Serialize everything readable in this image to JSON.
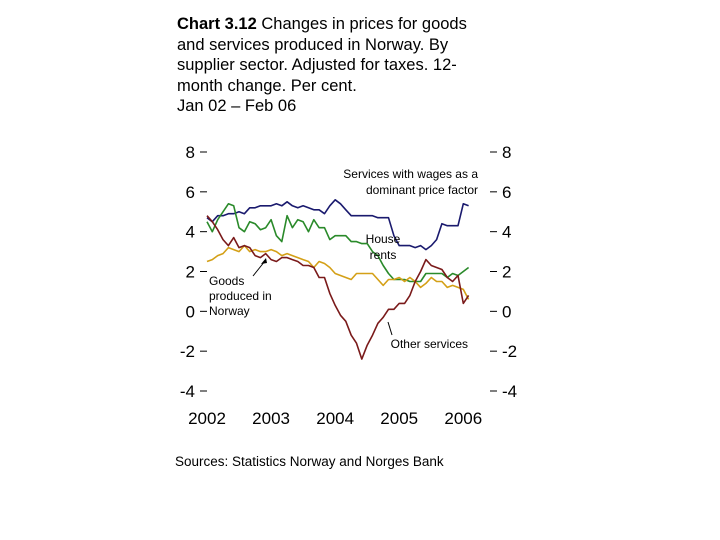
{
  "title": {
    "label": "Chart 3.12",
    "lines": [
      "Changes in prices for goods",
      "and services produced in Norway. By",
      "supplier sector. Adjusted for taxes. 12-",
      "month change. Per cent.",
      "Jan 02 – Feb 06"
    ]
  },
  "source": "Sources: Statistics Norway and Norges Bank",
  "colors": {
    "services_wages": "#1a1a6e",
    "house_rents": "#2a8a2a",
    "goods": "#d4a017",
    "other_services": "#7a1a1a"
  },
  "chart_data": {
    "type": "line",
    "x_tick_labels": [
      "2002",
      "2003",
      "2004",
      "2005",
      "2006"
    ],
    "y_ticks": [
      8,
      6,
      4,
      2,
      0,
      -2,
      -4
    ],
    "y_tick_labels": [
      "8",
      "6",
      "4",
      "2",
      "0",
      "-2",
      "-4"
    ],
    "ylim": [
      -4,
      8
    ],
    "xlim": [
      "2002-01",
      "2006-06"
    ],
    "grid": false,
    "annotations": {
      "services_wages": "Services with wages as a\ndominant price factor",
      "house_rents": "House\nrents",
      "goods": "Goods\nproduced in\nNorway",
      "other_services": "Other services"
    },
    "series": [
      {
        "key": "services_wages",
        "values": [
          [
            "2002-01",
            4.7
          ],
          [
            "2002-02",
            4.5
          ],
          [
            "2002-03",
            4.8
          ],
          [
            "2002-04",
            4.8
          ],
          [
            "2002-05",
            4.9
          ],
          [
            "2002-06",
            4.9
          ],
          [
            "2002-07",
            5.0
          ],
          [
            "2002-08",
            4.9
          ],
          [
            "2002-09",
            5.2
          ],
          [
            "2002-10",
            5.2
          ],
          [
            "2002-11",
            5.3
          ],
          [
            "2002-12",
            5.3
          ],
          [
            "2003-01",
            5.3
          ],
          [
            "2003-02",
            5.4
          ],
          [
            "2003-03",
            5.3
          ],
          [
            "2003-04",
            5.5
          ],
          [
            "2003-05",
            5.3
          ],
          [
            "2003-06",
            5.2
          ],
          [
            "2003-07",
            5.3
          ],
          [
            "2003-08",
            5.2
          ],
          [
            "2003-09",
            5.1
          ],
          [
            "2003-10",
            5.1
          ],
          [
            "2003-11",
            4.9
          ],
          [
            "2003-12",
            5.3
          ],
          [
            "2004-01",
            5.6
          ],
          [
            "2004-02",
            5.4
          ],
          [
            "2004-03",
            5.1
          ],
          [
            "2004-04",
            4.8
          ],
          [
            "2004-05",
            4.8
          ],
          [
            "2004-06",
            4.8
          ],
          [
            "2004-07",
            4.8
          ],
          [
            "2004-08",
            4.8
          ],
          [
            "2004-09",
            4.7
          ],
          [
            "2004-10",
            4.7
          ],
          [
            "2004-11",
            4.7
          ],
          [
            "2004-12",
            3.8
          ],
          [
            "2005-01",
            3.3
          ],
          [
            "2005-02",
            3.3
          ],
          [
            "2005-03",
            3.3
          ],
          [
            "2005-04",
            3.2
          ],
          [
            "2005-05",
            3.3
          ],
          [
            "2005-06",
            3.1
          ],
          [
            "2005-07",
            3.3
          ],
          [
            "2005-08",
            3.6
          ],
          [
            "2005-09",
            4.4
          ],
          [
            "2005-10",
            4.3
          ],
          [
            "2005-11",
            4.3
          ],
          [
            "2005-12",
            4.3
          ],
          [
            "2006-01",
            5.4
          ],
          [
            "2006-02",
            5.3
          ]
        ]
      },
      {
        "key": "house_rents",
        "values": [
          [
            "2002-01",
            4.5
          ],
          [
            "2002-02",
            4.0
          ],
          [
            "2002-03",
            4.6
          ],
          [
            "2002-04",
            5.0
          ],
          [
            "2002-05",
            5.4
          ],
          [
            "2002-06",
            5.3
          ],
          [
            "2002-07",
            4.2
          ],
          [
            "2002-08",
            4.0
          ],
          [
            "2002-09",
            4.5
          ],
          [
            "2002-10",
            4.4
          ],
          [
            "2002-11",
            4.1
          ],
          [
            "2002-12",
            4.2
          ],
          [
            "2003-01",
            4.6
          ],
          [
            "2003-02",
            3.8
          ],
          [
            "2003-03",
            3.5
          ],
          [
            "2003-04",
            4.8
          ],
          [
            "2003-05",
            4.2
          ],
          [
            "2003-06",
            4.6
          ],
          [
            "2003-07",
            4.5
          ],
          [
            "2003-08",
            4.0
          ],
          [
            "2003-09",
            4.6
          ],
          [
            "2003-10",
            4.2
          ],
          [
            "2003-11",
            4.2
          ],
          [
            "2003-12",
            3.6
          ],
          [
            "2004-01",
            3.8
          ],
          [
            "2004-02",
            3.8
          ],
          [
            "2004-03",
            3.8
          ],
          [
            "2004-04",
            3.5
          ],
          [
            "2004-05",
            3.5
          ],
          [
            "2004-06",
            3.4
          ],
          [
            "2004-07",
            3.4
          ],
          [
            "2004-08",
            3.0
          ],
          [
            "2004-09",
            2.8
          ],
          [
            "2004-10",
            2.3
          ],
          [
            "2004-11",
            1.9
          ],
          [
            "2004-12",
            1.6
          ],
          [
            "2005-01",
            1.6
          ],
          [
            "2005-02",
            1.6
          ],
          [
            "2005-03",
            1.5
          ],
          [
            "2005-04",
            1.5
          ],
          [
            "2005-05",
            1.5
          ],
          [
            "2005-06",
            1.9
          ],
          [
            "2005-07",
            1.9
          ],
          [
            "2005-08",
            1.9
          ],
          [
            "2005-09",
            1.9
          ],
          [
            "2005-10",
            1.7
          ],
          [
            "2005-11",
            1.9
          ],
          [
            "2005-12",
            1.8
          ],
          [
            "2006-01",
            2.0
          ],
          [
            "2006-02",
            2.2
          ]
        ]
      },
      {
        "key": "goods",
        "values": [
          [
            "2002-01",
            2.5
          ],
          [
            "2002-02",
            2.6
          ],
          [
            "2002-03",
            2.8
          ],
          [
            "2002-04",
            2.9
          ],
          [
            "2002-05",
            3.2
          ],
          [
            "2002-06",
            3.1
          ],
          [
            "2002-07",
            3.0
          ],
          [
            "2002-08",
            3.3
          ],
          [
            "2002-09",
            3.0
          ],
          [
            "2002-10",
            3.1
          ],
          [
            "2002-11",
            3.0
          ],
          [
            "2002-12",
            3.0
          ],
          [
            "2003-01",
            3.1
          ],
          [
            "2003-02",
            3.0
          ],
          [
            "2003-03",
            2.8
          ],
          [
            "2003-04",
            2.9
          ],
          [
            "2003-05",
            2.8
          ],
          [
            "2003-06",
            2.7
          ],
          [
            "2003-07",
            2.6
          ],
          [
            "2003-08",
            2.5
          ],
          [
            "2003-09",
            2.2
          ],
          [
            "2003-10",
            2.5
          ],
          [
            "2003-11",
            2.4
          ],
          [
            "2003-12",
            2.2
          ],
          [
            "2004-01",
            1.9
          ],
          [
            "2004-02",
            1.8
          ],
          [
            "2004-03",
            1.7
          ],
          [
            "2004-04",
            1.6
          ],
          [
            "2004-05",
            1.9
          ],
          [
            "2004-06",
            1.9
          ],
          [
            "2004-07",
            1.9
          ],
          [
            "2004-08",
            1.9
          ],
          [
            "2004-09",
            1.6
          ],
          [
            "2004-10",
            1.3
          ],
          [
            "2004-11",
            1.6
          ],
          [
            "2004-12",
            1.6
          ],
          [
            "2005-01",
            1.7
          ],
          [
            "2005-02",
            1.5
          ],
          [
            "2005-03",
            1.7
          ],
          [
            "2005-04",
            1.5
          ],
          [
            "2005-05",
            1.2
          ],
          [
            "2005-06",
            1.4
          ],
          [
            "2005-07",
            1.7
          ],
          [
            "2005-08",
            1.5
          ],
          [
            "2005-09",
            1.5
          ],
          [
            "2005-10",
            1.2
          ],
          [
            "2005-11",
            1.3
          ],
          [
            "2005-12",
            1.2
          ],
          [
            "2006-01",
            1.1
          ],
          [
            "2006-02",
            0.6
          ]
        ]
      },
      {
        "key": "other_services",
        "values": [
          [
            "2002-01",
            4.8
          ],
          [
            "2002-02",
            4.5
          ],
          [
            "2002-03",
            4.1
          ],
          [
            "2002-04",
            3.6
          ],
          [
            "2002-05",
            3.3
          ],
          [
            "2002-06",
            3.7
          ],
          [
            "2002-07",
            3.2
          ],
          [
            "2002-08",
            3.3
          ],
          [
            "2002-09",
            3.2
          ],
          [
            "2002-10",
            2.8
          ],
          [
            "2002-11",
            2.7
          ],
          [
            "2002-12",
            2.9
          ],
          [
            "2003-01",
            2.6
          ],
          [
            "2003-02",
            2.5
          ],
          [
            "2003-03",
            2.7
          ],
          [
            "2003-04",
            2.7
          ],
          [
            "2003-05",
            2.6
          ],
          [
            "2003-06",
            2.5
          ],
          [
            "2003-07",
            2.3
          ],
          [
            "2003-08",
            2.3
          ],
          [
            "2003-09",
            2.2
          ],
          [
            "2003-10",
            1.7
          ],
          [
            "2003-11",
            1.7
          ],
          [
            "2003-12",
            0.9
          ],
          [
            "2004-01",
            0.3
          ],
          [
            "2004-02",
            -0.2
          ],
          [
            "2004-03",
            -0.5
          ],
          [
            "2004-04",
            -1.2
          ],
          [
            "2004-05",
            -1.6
          ],
          [
            "2004-06",
            -2.4
          ],
          [
            "2004-07",
            -1.7
          ],
          [
            "2004-08",
            -1.2
          ],
          [
            "2004-09",
            -0.6
          ],
          [
            "2004-10",
            -0.3
          ],
          [
            "2004-11",
            0.1
          ],
          [
            "2004-12",
            0.1
          ],
          [
            "2005-01",
            0.4
          ],
          [
            "2005-02",
            0.4
          ],
          [
            "2005-03",
            0.8
          ],
          [
            "2005-04",
            1.5
          ],
          [
            "2005-05",
            2.0
          ],
          [
            "2005-06",
            2.6
          ],
          [
            "2005-07",
            2.3
          ],
          [
            "2005-08",
            2.2
          ],
          [
            "2005-09",
            2.1
          ],
          [
            "2005-10",
            1.7
          ],
          [
            "2005-11",
            1.5
          ],
          [
            "2005-12",
            1.8
          ],
          [
            "2006-01",
            0.4
          ],
          [
            "2006-02",
            0.8
          ]
        ]
      }
    ]
  }
}
